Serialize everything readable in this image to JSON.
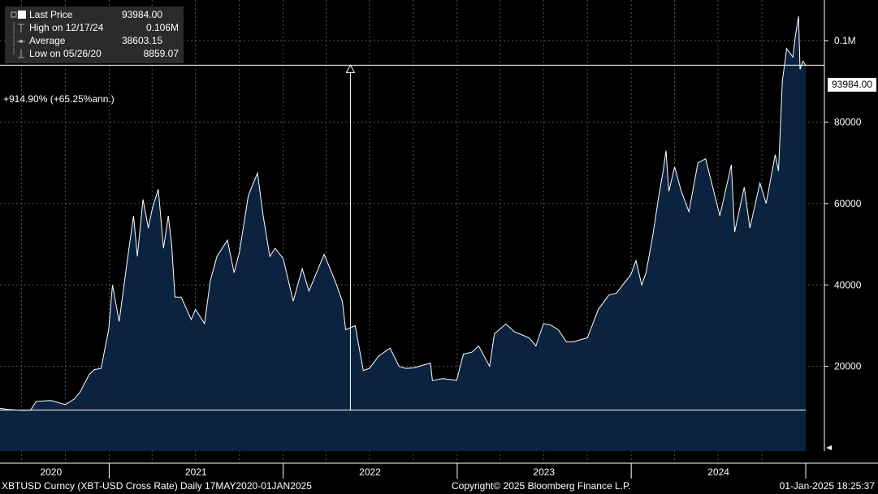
{
  "legend": {
    "last_label": "Last Price",
    "last_value": "93984.00",
    "high_label": "High on 12/17/24",
    "high_value": "0.106M",
    "avg_label": "Average",
    "avg_value": "38603.15",
    "low_label": "Low on 05/26/20",
    "low_value": "8859.07"
  },
  "annotation": {
    "performance": "+914.90% (+65.25%ann.)"
  },
  "footer": {
    "left": "XBTUSD Curncy (XBT-USD Cross Rate)  Daily 17MAY2020-01JAN2025",
    "center": "Copyright© 2025 Bloomberg Finance L.P.",
    "right": "01-Jan-2025 18:25:37"
  },
  "colors": {
    "background": "#000000",
    "area_fill": "#0c2340",
    "line": "#ffffff",
    "grid": "#555555",
    "legend_bg": "#2b2b2b"
  },
  "chart_data": {
    "type": "area",
    "series": [
      {
        "name": "Last Price",
        "x": [
          "2020-05-17",
          "2020-06-01",
          "2020-07-01",
          "2020-07-20",
          "2020-08-01",
          "2020-09-01",
          "2020-10-01",
          "2020-10-20",
          "2020-11-01",
          "2020-11-20",
          "2020-12-01",
          "2020-12-15",
          "2020-12-31",
          "2021-01-08",
          "2021-01-22",
          "2021-02-08",
          "2021-02-21",
          "2021-03-01",
          "2021-03-13",
          "2021-03-24",
          "2021-04-02",
          "2021-04-14",
          "2021-04-25",
          "2021-05-05",
          "2021-05-12",
          "2021-05-19",
          "2021-06-01",
          "2021-06-22",
          "2021-07-01",
          "2021-07-20",
          "2021-08-01",
          "2021-08-15",
          "2021-09-06",
          "2021-09-20",
          "2021-10-01",
          "2021-10-20",
          "2021-11-08",
          "2021-11-20",
          "2021-12-04",
          "2021-12-15",
          "2022-01-01",
          "2022-01-22",
          "2022-02-10",
          "2022-02-24",
          "2022-03-28",
          "2022-04-20",
          "2022-05-05",
          "2022-05-12",
          "2022-06-01",
          "2022-06-18",
          "2022-07-01",
          "2022-07-20",
          "2022-08-13",
          "2022-09-01",
          "2022-09-15",
          "2022-10-01",
          "2022-11-06",
          "2022-11-10",
          "2022-12-01",
          "2022-12-31",
          "2023-01-14",
          "2023-02-01",
          "2023-02-15",
          "2023-03-10",
          "2023-03-20",
          "2023-04-13",
          "2023-05-01",
          "2023-06-01",
          "2023-06-15",
          "2023-07-01",
          "2023-07-15",
          "2023-08-01",
          "2023-08-18",
          "2023-09-01",
          "2023-09-15",
          "2023-10-01",
          "2023-10-24",
          "2023-11-15",
          "2023-12-01",
          "2023-12-31",
          "2024-01-11",
          "2024-01-23",
          "2024-02-01",
          "2024-02-15",
          "2024-02-28",
          "2024-03-08",
          "2024-03-14",
          "2024-03-20",
          "2024-04-01",
          "2024-04-15",
          "2024-05-01",
          "2024-05-20",
          "2024-06-05",
          "2024-06-20",
          "2024-07-05",
          "2024-07-29",
          "2024-08-05",
          "2024-08-25",
          "2024-09-06",
          "2024-09-27",
          "2024-10-10",
          "2024-10-29",
          "2024-11-05",
          "2024-11-13",
          "2024-11-22",
          "2024-12-05",
          "2024-12-10",
          "2024-12-17",
          "2024-12-20",
          "2024-12-26",
          "2025-01-01"
        ],
        "values": [
          9700,
          9400,
          9200,
          9200,
          11400,
          11600,
          10600,
          12000,
          13700,
          18000,
          19200,
          19500,
          29000,
          40000,
          31000,
          46000,
          57000,
          47000,
          61000,
          54000,
          59000,
          63500,
          49000,
          57000,
          50000,
          37000,
          37000,
          31500,
          34000,
          30500,
          41000,
          47000,
          51000,
          43000,
          48000,
          62000,
          67500,
          57000,
          47000,
          49000,
          46500,
          36000,
          44000,
          38500,
          47500,
          41000,
          36000,
          29000,
          30000,
          19000,
          19500,
          22500,
          24500,
          20000,
          19500,
          19600,
          20800,
          16500,
          17000,
          16600,
          23000,
          23500,
          25000,
          20000,
          28000,
          30400,
          28500,
          27000,
          25000,
          30500,
          30200,
          29000,
          26000,
          26000,
          26500,
          27000,
          34000,
          37500,
          38000,
          42500,
          46000,
          40000,
          43000,
          52000,
          62000,
          68000,
          73000,
          63000,
          69000,
          63000,
          58000,
          70000,
          71000,
          64000,
          57000,
          69500,
          53000,
          64000,
          54000,
          65000,
          60000,
          72000,
          68000,
          90000,
          98000,
          96000,
          101000,
          106000,
          93000,
          95000,
          93984
        ]
      }
    ],
    "horizontal_lines": [
      {
        "y": 93984
      },
      {
        "y": 9259
      }
    ],
    "arrow": {
      "x": "2022-05-22",
      "from": 9259,
      "to": 93984
    },
    "ylim": [
      0,
      110000
    ],
    "y_ticks": [
      {
        "value": 20000,
        "label": "20000"
      },
      {
        "value": 40000,
        "label": "40000"
      },
      {
        "value": 60000,
        "label": "60000"
      },
      {
        "value": 80000,
        "label": "80000"
      },
      {
        "value": 100000,
        "label": "0.1M"
      }
    ],
    "x_year_labels": [
      {
        "x": "2020-09-01",
        "label": "2020"
      },
      {
        "x": "2021-07-02",
        "label": "2021"
      },
      {
        "x": "2022-07-02",
        "label": "2022"
      },
      {
        "x": "2023-07-02",
        "label": "2023"
      },
      {
        "x": "2024-07-02",
        "label": "2024"
      }
    ],
    "x_year_boundaries": [
      "2021-01-01",
      "2022-01-01",
      "2023-01-01",
      "2024-01-01",
      "2025-01-01"
    ],
    "last_value_label": "93984.00",
    "grid": true
  }
}
